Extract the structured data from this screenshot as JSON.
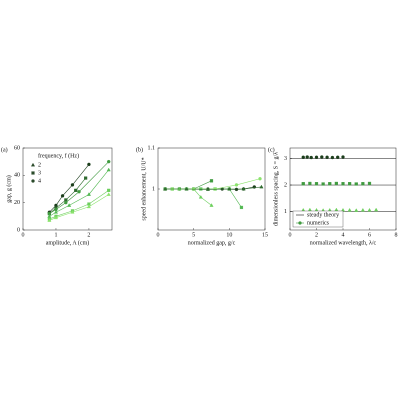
{
  "chart_data": [
    {
      "type": "line",
      "panel": "(a)",
      "xlabel": "amplitude, A (cm)",
      "ylabel": "gap, g (cm)",
      "xlim": [
        0,
        2.7
      ],
      "xticks": [
        0,
        1,
        2
      ],
      "ylim": [
        0,
        60
      ],
      "yticks": [
        0,
        20,
        40,
        60
      ],
      "legend_title": "frequency, f (Hz)",
      "legend": [
        {
          "label": "2",
          "marker": "triangle"
        },
        {
          "label": "3",
          "marker": "square"
        },
        {
          "label": "4",
          "marker": "circle"
        }
      ],
      "series": [
        {
          "color": "#1b3d1b",
          "marker": "circle",
          "x": [
            0.8,
            1,
            1.2,
            1.5,
            2
          ],
          "values": [
            13,
            18,
            25,
            33,
            48
          ]
        },
        {
          "color": "#2f6b2f",
          "marker": "square",
          "x": [
            0.8,
            1,
            1.3,
            1.6,
            1.9
          ],
          "values": [
            12,
            16,
            22,
            29,
            38
          ]
        },
        {
          "color": "#3f9a3f",
          "marker": "circle",
          "x": [
            0.8,
            1,
            1.3,
            1.7,
            2.6
          ],
          "values": [
            12,
            15,
            20,
            28,
            50
          ]
        },
        {
          "color": "#52b852",
          "marker": "triangle",
          "x": [
            0.8,
            1,
            1.4,
            2,
            2.6
          ],
          "values": [
            10,
            13,
            18,
            26,
            44
          ]
        },
        {
          "color": "#6ccf5c",
          "marker": "square",
          "x": [
            0.8,
            1,
            1.5,
            2,
            2.6
          ],
          "values": [
            8,
            10,
            14,
            19,
            29
          ]
        },
        {
          "color": "#8be36c",
          "marker": "triangle",
          "x": [
            0.8,
            1,
            1.5,
            2,
            2.6
          ],
          "values": [
            7,
            9,
            13,
            17,
            26
          ]
        }
      ]
    },
    {
      "type": "line",
      "panel": "(b)",
      "xlabel": "normalized gap, g/c",
      "ylabel": "speed enhancement, U/U*",
      "xlim": [
        0,
        15
      ],
      "xticks": [
        0,
        5,
        10,
        15
      ],
      "ylim": [
        0.9,
        1.1
      ],
      "yticks": [
        1,
        1.1
      ],
      "series": [
        {
          "color": "#1b3d1b",
          "marker": "circle",
          "x": [
            1,
            3,
            5,
            7,
            9,
            11,
            12,
            13.5
          ],
          "values": [
            1,
            1,
            1,
            1,
            1,
            0.999,
            1,
            1.005
          ]
        },
        {
          "color": "#3f9a3f",
          "marker": "square",
          "x": [
            1,
            3,
            5,
            7.5
          ],
          "values": [
            1,
            1,
            1,
            1.02
          ]
        },
        {
          "color": "#6ccf5c",
          "marker": "triangle",
          "x": [
            1,
            3,
            5,
            6,
            7.5
          ],
          "values": [
            1,
            1,
            1,
            0.98,
            0.96
          ]
        },
        {
          "color": "#52b852",
          "marker": "square",
          "x": [
            2,
            4,
            6,
            8,
            10,
            11.7
          ],
          "values": [
            1,
            1,
            1,
            1,
            1,
            0.955
          ]
        },
        {
          "color": "#8be36c",
          "marker": "circle",
          "x": [
            2,
            5,
            8,
            11,
            14.3
          ],
          "values": [
            1,
            1,
            1,
            1.01,
            1.025
          ]
        },
        {
          "color": "#2f6b2f",
          "marker": "triangle",
          "x": [
            1,
            4,
            7,
            10,
            12,
            14.5
          ],
          "values": [
            1,
            1,
            0.999,
            1,
            1,
            1.005
          ]
        }
      ]
    },
    {
      "type": "scatter",
      "panel": "(c)",
      "xlabel": "normalized wavelength, λ/c",
      "ylabel": "dimensionless spacing, S = g/λ",
      "xlim": [
        0,
        8
      ],
      "xticks": [
        0,
        2,
        4,
        6,
        8
      ],
      "ylim": [
        0.3,
        3.4
      ],
      "yticks": [
        1,
        2,
        3
      ],
      "theory": [
        1,
        2,
        3
      ],
      "legend": [
        {
          "label": "steady theory"
        },
        {
          "label": "numerics"
        }
      ],
      "series": [
        {
          "color": "#1b3d1b",
          "marker": "circle",
          "x": [
            1,
            1.3,
            1.6,
            2,
            2.4,
            2.8,
            3.2,
            3.6,
            4
          ],
          "values": [
            3.05,
            3.06,
            3.04,
            3.05,
            3.06,
            3.05,
            3.04,
            3.05,
            3.06
          ]
        },
        {
          "color": "#3f9a3f",
          "marker": "square",
          "x": [
            1,
            1.5,
            2,
            2.5,
            3,
            3.5,
            4,
            4.5,
            5,
            5.5,
            6
          ],
          "values": [
            2.05,
            2.06,
            2.05,
            2.04,
            2.05,
            2.06,
            2.05,
            2.05,
            2.04,
            2.05,
            2.06
          ]
        },
        {
          "color": "#6ccf5c",
          "marker": "triangle",
          "x": [
            1,
            1.5,
            2,
            2.5,
            3,
            3.5,
            4,
            4.5,
            5,
            5.5,
            6,
            6.5
          ],
          "values": [
            1.05,
            1.06,
            1.05,
            1.04,
            1.05,
            1.06,
            1.05,
            1.05,
            1.04,
            1.05,
            1.05,
            1.06
          ]
        }
      ]
    }
  ]
}
